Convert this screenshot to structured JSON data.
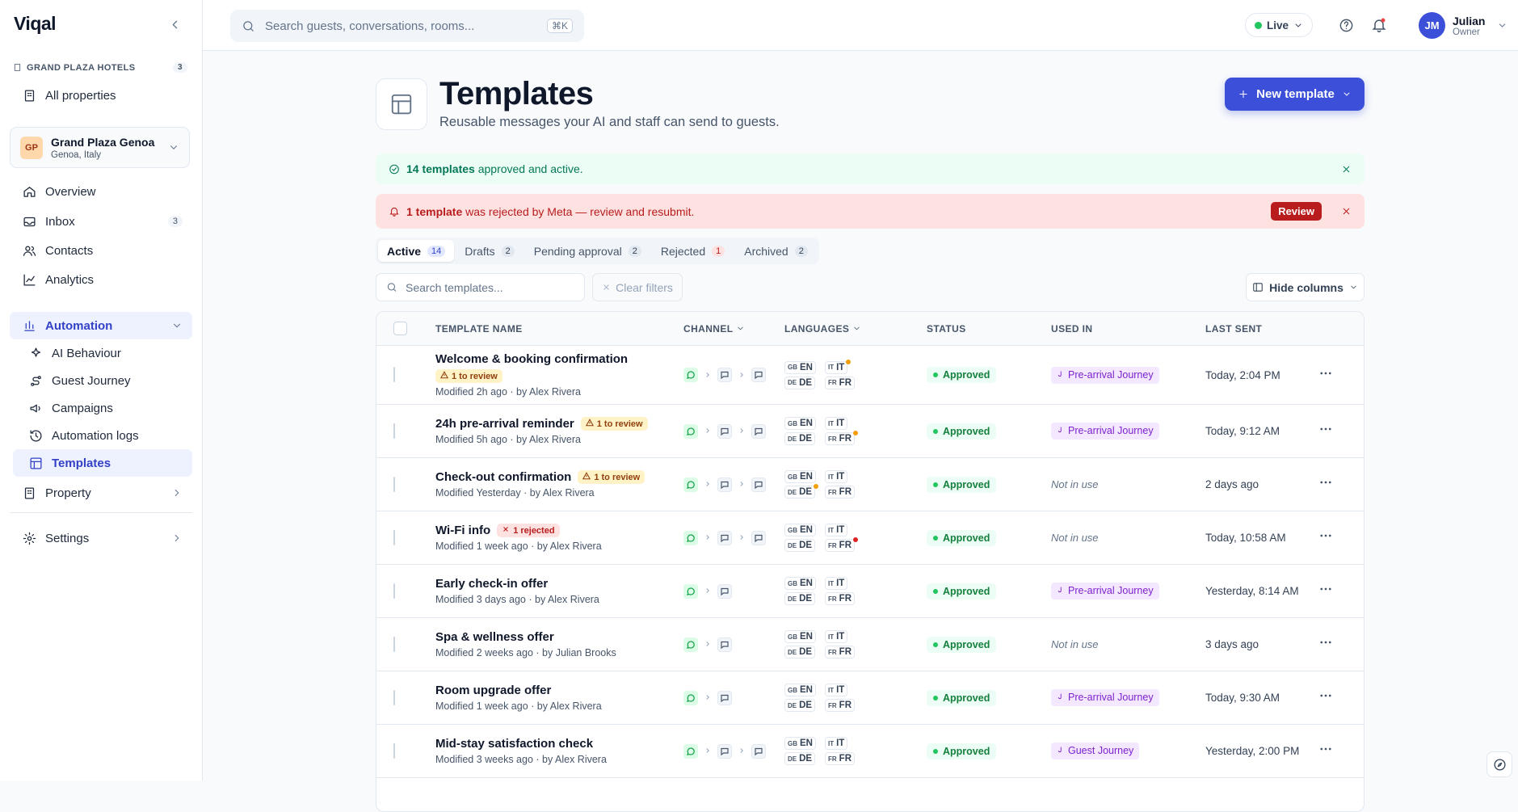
{
  "sidebar": {
    "brand": "Viqal",
    "org": {
      "name": "GRAND PLAZA HOTELS",
      "count": 3
    },
    "all_properties": "All properties",
    "property": {
      "initials": "GP",
      "name": "Grand Plaza Genoa",
      "location": "Genoa, Italy"
    },
    "nav": [
      {
        "label": "Overview"
      },
      {
        "label": "Inbox",
        "badge": 3
      },
      {
        "label": "Contacts"
      },
      {
        "label": "Analytics"
      }
    ],
    "automation": {
      "label": "Automation",
      "items": [
        "AI Behaviour",
        "Guest Journey",
        "Campaigns",
        "Automation logs",
        "Templates"
      ]
    },
    "property_section": "Property",
    "settings": "Settings"
  },
  "header": {
    "search_placeholder": "Search guests, conversations, rooms...",
    "shortcut": "⌘K",
    "status": "Live",
    "user": {
      "initials": "JM",
      "name": "Julian",
      "role": "Owner"
    }
  },
  "page": {
    "title": "Templates",
    "subtitle": "Reusable messages your AI and staff can send to guests.",
    "new_button": "New template",
    "success": {
      "strong": "14 templates",
      "text": "approved and active."
    },
    "alert": {
      "strong": "1 template",
      "text": "was rejected by Meta — review and resubmit.",
      "action": "Review"
    },
    "tabs": [
      {
        "label": "Active",
        "count": 14
      },
      {
        "label": "Drafts",
        "count": 2
      },
      {
        "label": "Pending approval",
        "count": 2
      },
      {
        "label": "Rejected",
        "count": 1
      },
      {
        "label": "Archived",
        "count": 2
      }
    ],
    "search_placeholder": "Search templates...",
    "clear_filters": "Clear filters",
    "hide_columns": "Hide columns"
  },
  "table": {
    "columns": [
      "TEMPLATE NAME",
      "CHANNEL",
      "LANGUAGES",
      "STATUS",
      "USED IN",
      "LAST SENT"
    ],
    "rows": [
      {
        "name": "Welcome & booking confirmation",
        "badge": {
          "kind": "review",
          "text": "1 to review"
        },
        "modified": "Modified 2h ago · by Alex Rivera",
        "channels": [
          "whatsapp",
          "message",
          "message"
        ],
        "languages": [
          {
            "flag": "GB",
            "code": "EN"
          },
          {
            "flag": "IT",
            "code": "IT",
            "dot": "#f59e0b"
          },
          {
            "flag": "DE",
            "code": "DE"
          },
          {
            "flag": "FR",
            "code": "FR"
          }
        ],
        "status": "Approved",
        "used_in": {
          "journey": "Pre-arrival Journey"
        },
        "last_sent": "Today, 2:04 PM"
      },
      {
        "name": "24h pre-arrival reminder",
        "badge": {
          "kind": "review",
          "text": "1 to review"
        },
        "modified": "Modified 5h ago · by Alex Rivera",
        "channels": [
          "whatsapp",
          "message",
          "message"
        ],
        "languages": [
          {
            "flag": "GB",
            "code": "EN"
          },
          {
            "flag": "IT",
            "code": "IT"
          },
          {
            "flag": "DE",
            "code": "DE"
          },
          {
            "flag": "FR",
            "code": "FR",
            "dot": "#f59e0b"
          }
        ],
        "status": "Approved",
        "used_in": {
          "journey": "Pre-arrival Journey"
        },
        "last_sent": "Today, 9:12 AM"
      },
      {
        "name": "Check-out confirmation",
        "badge": {
          "kind": "review",
          "text": "1 to review"
        },
        "modified": "Modified Yesterday · by Alex Rivera",
        "channels": [
          "whatsapp",
          "message",
          "message"
        ],
        "languages": [
          {
            "flag": "GB",
            "code": "EN"
          },
          {
            "flag": "IT",
            "code": "IT"
          },
          {
            "flag": "DE",
            "code": "DE",
            "dot": "#f59e0b"
          },
          {
            "flag": "FR",
            "code": "FR"
          }
        ],
        "status": "Approved",
        "used_in": {
          "note": "Not in use"
        },
        "last_sent": "2 days ago"
      },
      {
        "name": "Wi-Fi info",
        "badge": {
          "kind": "rejected",
          "text": "1 rejected"
        },
        "modified": "Modified 1 week ago · by Alex Rivera",
        "channels": [
          "whatsapp",
          "message",
          "message"
        ],
        "languages": [
          {
            "flag": "GB",
            "code": "EN"
          },
          {
            "flag": "IT",
            "code": "IT"
          },
          {
            "flag": "DE",
            "code": "DE"
          },
          {
            "flag": "FR",
            "code": "FR",
            "dot": "#dc2626"
          }
        ],
        "status": "Approved",
        "used_in": {
          "note": "Not in use"
        },
        "last_sent": "Today, 10:58 AM"
      },
      {
        "name": "Early check-in offer",
        "modified": "Modified 3 days ago · by Alex Rivera",
        "channels": [
          "whatsapp",
          "message"
        ],
        "languages": [
          {
            "flag": "GB",
            "code": "EN"
          },
          {
            "flag": "IT",
            "code": "IT"
          },
          {
            "flag": "DE",
            "code": "DE"
          },
          {
            "flag": "FR",
            "code": "FR"
          }
        ],
        "status": "Approved",
        "used_in": {
          "journey": "Pre-arrival Journey"
        },
        "last_sent": "Yesterday, 8:14 AM"
      },
      {
        "name": "Spa & wellness offer",
        "modified": "Modified 2 weeks ago · by Julian Brooks",
        "channels": [
          "whatsapp",
          "message"
        ],
        "languages": [
          {
            "flag": "GB",
            "code": "EN"
          },
          {
            "flag": "IT",
            "code": "IT"
          },
          {
            "flag": "DE",
            "code": "DE"
          },
          {
            "flag": "FR",
            "code": "FR"
          }
        ],
        "status": "Approved",
        "used_in": {
          "note": "Not in use"
        },
        "last_sent": "3 days ago"
      },
      {
        "name": "Room upgrade offer",
        "modified": "Modified 1 week ago · by Alex Rivera",
        "channels": [
          "whatsapp",
          "message"
        ],
        "languages": [
          {
            "flag": "GB",
            "code": "EN"
          },
          {
            "flag": "IT",
            "code": "IT"
          },
          {
            "flag": "DE",
            "code": "DE"
          },
          {
            "flag": "FR",
            "code": "FR"
          }
        ],
        "status": "Approved",
        "used_in": {
          "journey": "Pre-arrival Journey"
        },
        "last_sent": "Today, 9:30 AM"
      },
      {
        "name": "Mid-stay satisfaction check",
        "modified": "Modified 3 weeks ago · by Alex Rivera",
        "channels": [
          "whatsapp",
          "message",
          "message"
        ],
        "languages": [
          {
            "flag": "GB",
            "code": "EN"
          },
          {
            "flag": "IT",
            "code": "IT"
          },
          {
            "flag": "DE",
            "code": "DE"
          },
          {
            "flag": "FR",
            "code": "FR"
          }
        ],
        "status": "Approved",
        "used_in": {
          "journey": "Guest Journey"
        },
        "last_sent": "Yesterday, 2:00 PM"
      }
    ]
  }
}
